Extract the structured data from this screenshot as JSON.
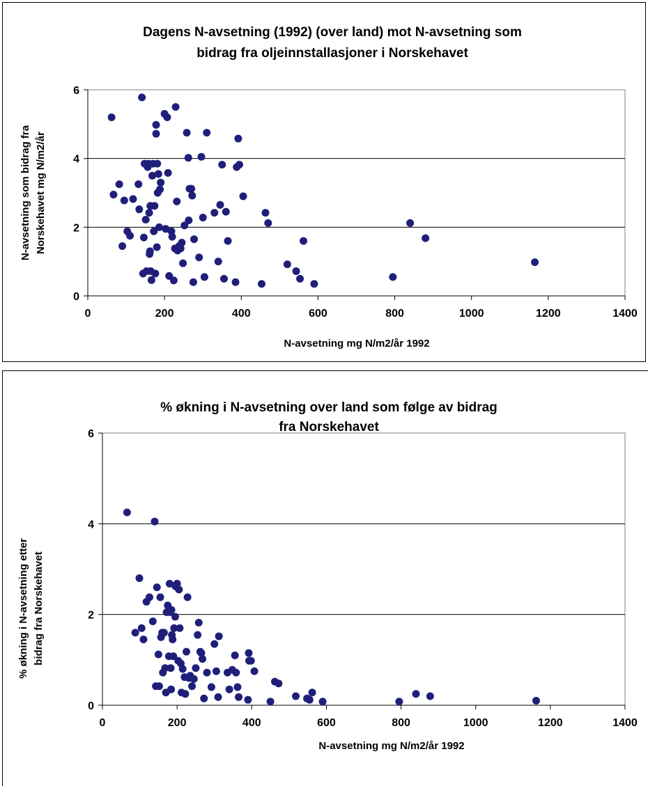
{
  "chart_data": [
    {
      "type": "scatter",
      "title_lines": [
        "Dagens N-avsetning (1992) (over land) mot N-avsetning som",
        "bidrag fra oljeinnstallasjoner i Norskehavet"
      ],
      "xlabel": "N-avsetning mg N/m2/år 1992",
      "ylabel_lines": [
        "N-avsetning som bidrag fra",
        "Norskehavet mg N/m2/år"
      ],
      "xlim": [
        0,
        1400
      ],
      "ylim": [
        0,
        6
      ],
      "xticks": [
        "0",
        "200",
        "400",
        "600",
        "800",
        "1000",
        "1200",
        "1400"
      ],
      "yticks": [
        "0",
        "2",
        "4",
        "6"
      ],
      "grid": "horizontal major",
      "legend": "none",
      "marker_color": "#1f1f7a",
      "points": [
        [
          62,
          5.2
        ],
        [
          67,
          2.95
        ],
        [
          82,
          3.25
        ],
        [
          90,
          1.45
        ],
        [
          95,
          2.78
        ],
        [
          103,
          1.88
        ],
        [
          110,
          1.75
        ],
        [
          118,
          2.82
        ],
        [
          132,
          3.25
        ],
        [
          134,
          2.52
        ],
        [
          141,
          5.78
        ],
        [
          144,
          0.65
        ],
        [
          146,
          1.7
        ],
        [
          148,
          3.85
        ],
        [
          151,
          2.22
        ],
        [
          153,
          0.72
        ],
        [
          156,
          3.75
        ],
        [
          158,
          3.85
        ],
        [
          160,
          2.42
        ],
        [
          161,
          1.22
        ],
        [
          162,
          1.3
        ],
        [
          163,
          2.62
        ],
        [
          164,
          0.72
        ],
        [
          166,
          0.46
        ],
        [
          168,
          3.5
        ],
        [
          170,
          3.85
        ],
        [
          172,
          1.88
        ],
        [
          174,
          2.62
        ],
        [
          176,
          0.65
        ],
        [
          178,
          4.98
        ],
        [
          178,
          4.72
        ],
        [
          180,
          1.42
        ],
        [
          181,
          3.85
        ],
        [
          182,
          3.0
        ],
        [
          184,
          3.55
        ],
        [
          186,
          2.0
        ],
        [
          188,
          3.1
        ],
        [
          190,
          3.3
        ],
        [
          200,
          5.3
        ],
        [
          203,
          1.95
        ],
        [
          207,
          5.2
        ],
        [
          209,
          3.58
        ],
        [
          212,
          0.58
        ],
        [
          218,
          1.88
        ],
        [
          220,
          1.72
        ],
        [
          224,
          0.45
        ],
        [
          227,
          1.38
        ],
        [
          229,
          5.5
        ],
        [
          232,
          2.75
        ],
        [
          234,
          1.32
        ],
        [
          238,
          1.45
        ],
        [
          242,
          1.38
        ],
        [
          245,
          1.55
        ],
        [
          248,
          0.95
        ],
        [
          252,
          2.05
        ],
        [
          258,
          4.75
        ],
        [
          262,
          4.02
        ],
        [
          263,
          2.2
        ],
        [
          265,
          3.12
        ],
        [
          270,
          3.12
        ],
        [
          272,
          2.92
        ],
        [
          275,
          0.4
        ],
        [
          277,
          1.65
        ],
        [
          290,
          1.12
        ],
        [
          296,
          4.05
        ],
        [
          300,
          2.28
        ],
        [
          304,
          0.55
        ],
        [
          310,
          4.75
        ],
        [
          330,
          2.42
        ],
        [
          340,
          1.0
        ],
        [
          345,
          2.65
        ],
        [
          350,
          3.82
        ],
        [
          355,
          0.5
        ],
        [
          360,
          2.45
        ],
        [
          365,
          1.6
        ],
        [
          385,
          0.4
        ],
        [
          388,
          3.75
        ],
        [
          392,
          4.58
        ],
        [
          395,
          3.82
        ],
        [
          405,
          2.9
        ],
        [
          453,
          0.35
        ],
        [
          463,
          2.42
        ],
        [
          470,
          2.12
        ],
        [
          520,
          0.92
        ],
        [
          543,
          0.72
        ],
        [
          553,
          0.5
        ],
        [
          562,
          1.6
        ],
        [
          590,
          0.35
        ],
        [
          795,
          0.55
        ],
        [
          840,
          2.12
        ],
        [
          880,
          1.68
        ],
        [
          1165,
          0.98
        ]
      ]
    },
    {
      "type": "scatter",
      "title_lines": [
        "% økning i N-avsetning over land som følge av bidrag",
        "fra Norskehavet"
      ],
      "xlabel": "N-avsetning mg N/m2/år 1992",
      "ylabel_lines": [
        "% økning i N-avsetning etter",
        "bidrag fra Norskehavet"
      ],
      "xlim": [
        0,
        1400
      ],
      "ylim": [
        0,
        6
      ],
      "xticks": [
        "0",
        "200",
        "400",
        "600",
        "800",
        "1000",
        "1200",
        "1400"
      ],
      "yticks": [
        "0",
        "2",
        "4",
        "6"
      ],
      "grid": "horizontal major",
      "legend": "none",
      "marker_color": "#1f1f7a",
      "points": [
        [
          66,
          4.25
        ],
        [
          88,
          1.6
        ],
        [
          99,
          2.8
        ],
        [
          105,
          1.7
        ],
        [
          110,
          1.45
        ],
        [
          118,
          2.28
        ],
        [
          126,
          2.38
        ],
        [
          135,
          1.85
        ],
        [
          140,
          4.05
        ],
        [
          143,
          0.42
        ],
        [
          146,
          2.6
        ],
        [
          150,
          1.12
        ],
        [
          152,
          0.42
        ],
        [
          155,
          2.38
        ],
        [
          157,
          1.5
        ],
        [
          160,
          1.6
        ],
        [
          162,
          0.72
        ],
        [
          165,
          1.6
        ],
        [
          168,
          0.82
        ],
        [
          170,
          0.28
        ],
        [
          172,
          2.05
        ],
        [
          175,
          2.2
        ],
        [
          178,
          1.08
        ],
        [
          180,
          2.68
        ],
        [
          181,
          2.05
        ],
        [
          183,
          0.82
        ],
        [
          184,
          0.35
        ],
        [
          185,
          2.1
        ],
        [
          186,
          1.55
        ],
        [
          188,
          1.45
        ],
        [
          190,
          1.08
        ],
        [
          192,
          1.7
        ],
        [
          195,
          1.95
        ],
        [
          196,
          2.62
        ],
        [
          200,
          2.68
        ],
        [
          203,
          0.98
        ],
        [
          205,
          2.55
        ],
        [
          207,
          1.7
        ],
        [
          210,
          0.92
        ],
        [
          212,
          0.28
        ],
        [
          215,
          0.8
        ],
        [
          220,
          0.62
        ],
        [
          222,
          0.25
        ],
        [
          225,
          1.18
        ],
        [
          228,
          2.38
        ],
        [
          232,
          0.6
        ],
        [
          235,
          0.65
        ],
        [
          240,
          0.42
        ],
        [
          245,
          0.58
        ],
        [
          250,
          0.82
        ],
        [
          255,
          1.55
        ],
        [
          258,
          1.82
        ],
        [
          262,
          1.18
        ],
        [
          265,
          1.15
        ],
        [
          268,
          1.02
        ],
        [
          272,
          0.15
        ],
        [
          280,
          0.72
        ],
        [
          292,
          0.4
        ],
        [
          300,
          1.35
        ],
        [
          305,
          0.75
        ],
        [
          310,
          0.18
        ],
        [
          312,
          1.52
        ],
        [
          335,
          0.72
        ],
        [
          340,
          0.35
        ],
        [
          348,
          0.78
        ],
        [
          355,
          1.1
        ],
        [
          358,
          0.72
        ],
        [
          362,
          0.4
        ],
        [
          365,
          0.18
        ],
        [
          390,
          0.12
        ],
        [
          392,
          1.15
        ],
        [
          393,
          0.98
        ],
        [
          398,
          0.98
        ],
        [
          407,
          0.75
        ],
        [
          450,
          0.08
        ],
        [
          462,
          0.52
        ],
        [
          472,
          0.48
        ],
        [
          518,
          0.2
        ],
        [
          548,
          0.15
        ],
        [
          555,
          0.12
        ],
        [
          562,
          0.28
        ],
        [
          590,
          0.08
        ],
        [
          795,
          0.08
        ],
        [
          840,
          0.25
        ],
        [
          878,
          0.2
        ],
        [
          1162,
          0.1
        ]
      ]
    }
  ]
}
